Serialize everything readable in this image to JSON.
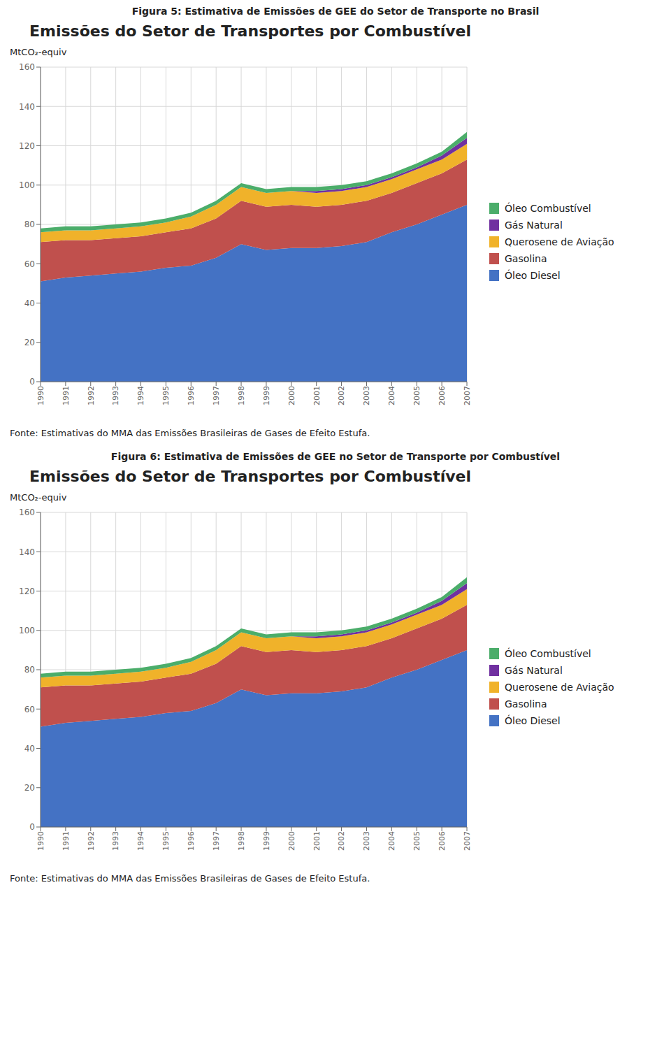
{
  "chart_data": [
    {
      "type": "area",
      "subtitle": "Figura 5: Estimativa de Emissões de GEE do Setor de Transporte no Brasil",
      "title": "Emissões do Setor de Transportes por Combustível",
      "y_label": "MtCO₂-equiv",
      "annotations": [
        "Fonte: Estimativas do MMA das Emissões Brasileiras de Gases de Efeito Estufa."
      ],
      "x": [
        1990,
        1991,
        1992,
        1993,
        1994,
        1995,
        1996,
        1997,
        1998,
        1999,
        2000,
        2001,
        2002,
        2003,
        2004,
        2005,
        2006,
        2007
      ],
      "series": [
        {
          "name": "Óleo Diesel",
          "color": "#4472C4",
          "values": [
            51,
            53,
            54,
            55,
            56,
            58,
            59,
            63,
            70,
            67,
            68,
            68,
            69,
            71,
            76,
            80,
            85,
            90
          ]
        },
        {
          "name": "Gasolina",
          "color": "#C0504D",
          "values": [
            20,
            19,
            18,
            18,
            18,
            18,
            19,
            20,
            22,
            22,
            22,
            21,
            21,
            21,
            20,
            21,
            21,
            23
          ]
        },
        {
          "name": "Querosene de Aviação",
          "color": "#F0B22A",
          "values": [
            5,
            5,
            5,
            5,
            5,
            5,
            6,
            7,
            7,
            7,
            7,
            7,
            7,
            7,
            7,
            7,
            7,
            8
          ]
        },
        {
          "name": "Gás Natural",
          "color": "#7030A0",
          "values": [
            0,
            0,
            0,
            0,
            0,
            0,
            0,
            0,
            0,
            0,
            0,
            1,
            1,
            1,
            1,
            1,
            2,
            3
          ]
        },
        {
          "name": "Óleo Combustível",
          "color": "#4BAD6A",
          "values": [
            2,
            2,
            2,
            2,
            2,
            2,
            2,
            2,
            2,
            2,
            2,
            2,
            2,
            2,
            2,
            2,
            2,
            3
          ]
        }
      ],
      "xlim": [
        1990,
        2007
      ],
      "xticks": [
        1990,
        1991,
        1992,
        1993,
        1994,
        1995,
        1996,
        1997,
        1998,
        1999,
        2000,
        2001,
        2002,
        2003,
        2004,
        2005,
        2006,
        2007
      ],
      "ylim": [
        0,
        160
      ],
      "yticks": [
        0,
        20,
        40,
        60,
        80,
        100,
        120,
        140,
        160
      ],
      "stacked": true,
      "grid": true,
      "legend": "right"
    },
    {
      "type": "area",
      "subtitle": "Figura 6: Estimativa de Emissões de GEE no Setor de Transporte por Combustível",
      "title": "Emissões do Setor de Transportes por Combustível",
      "y_label": "MtCO₂-equiv",
      "annotations": [
        "Fonte: Estimativas do MMA das Emissões Brasileiras de Gases de Efeito Estufa."
      ],
      "x": [
        1990,
        1991,
        1992,
        1993,
        1994,
        1995,
        1996,
        1997,
        1998,
        1999,
        2000,
        2001,
        2002,
        2003,
        2004,
        2005,
        2006,
        2007
      ],
      "series": [
        {
          "name": "Óleo Diesel",
          "color": "#4472C4",
          "values": [
            51,
            53,
            54,
            55,
            56,
            58,
            59,
            63,
            70,
            67,
            68,
            68,
            69,
            71,
            76,
            80,
            85,
            90
          ]
        },
        {
          "name": "Gasolina",
          "color": "#C0504D",
          "values": [
            20,
            19,
            18,
            18,
            18,
            18,
            19,
            20,
            22,
            22,
            22,
            21,
            21,
            21,
            20,
            21,
            21,
            23
          ]
        },
        {
          "name": "Querosene de Aviação",
          "color": "#F0B22A",
          "values": [
            5,
            5,
            5,
            5,
            5,
            5,
            6,
            7,
            7,
            7,
            7,
            7,
            7,
            7,
            7,
            7,
            7,
            8
          ]
        },
        {
          "name": "Gás Natural",
          "color": "#7030A0",
          "values": [
            0,
            0,
            0,
            0,
            0,
            0,
            0,
            0,
            0,
            0,
            0,
            1,
            1,
            1,
            1,
            1,
            2,
            3
          ]
        },
        {
          "name": "Óleo Combustível",
          "color": "#4BAD6A",
          "values": [
            2,
            2,
            2,
            2,
            2,
            2,
            2,
            2,
            2,
            2,
            2,
            2,
            2,
            2,
            2,
            2,
            2,
            3
          ]
        }
      ],
      "xlim": [
        1990,
        2007
      ],
      "xticks": [
        1990,
        1991,
        1992,
        1993,
        1994,
        1995,
        1996,
        1997,
        1998,
        1999,
        2000,
        2001,
        2002,
        2003,
        2004,
        2005,
        2006,
        2007
      ],
      "ylim": [
        0,
        160
      ],
      "yticks": [
        0,
        20,
        40,
        60,
        80,
        100,
        120,
        140,
        160
      ],
      "stacked": true,
      "grid": true,
      "legend": "right"
    }
  ]
}
